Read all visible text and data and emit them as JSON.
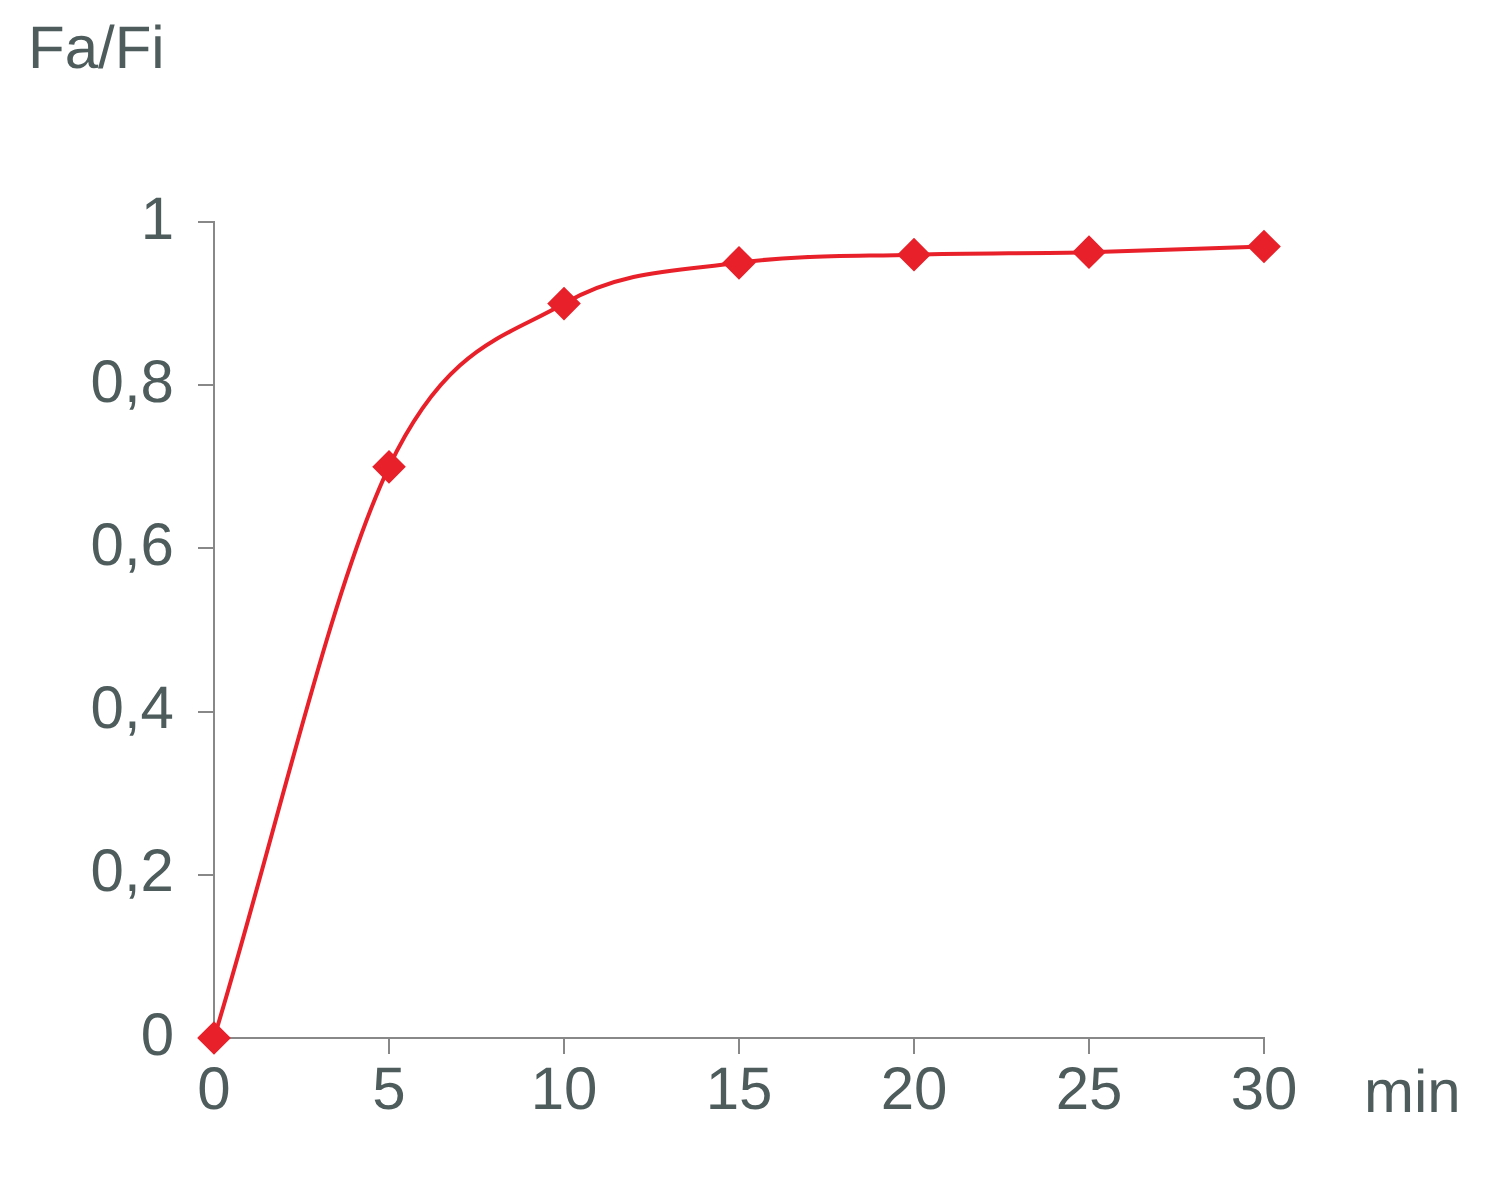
{
  "chart_data": {
    "type": "line",
    "xlabel": "min",
    "ylabel": "Fa/Fi",
    "x": [
      0,
      5,
      10,
      15,
      20,
      25,
      30
    ],
    "series": [
      {
        "color": "#e8202a",
        "values": [
          0,
          0.7,
          0.9,
          0.95,
          0.96,
          0.963,
          0.97
        ]
      }
    ],
    "xlim": [
      0,
      30
    ],
    "xticks": [
      0,
      5,
      10,
      15,
      20,
      25,
      30
    ],
    "ylim": [
      0,
      1
    ],
    "yticks": [
      {
        "value": 0,
        "label": "0"
      },
      {
        "value": 0.2,
        "label": "0,2"
      },
      {
        "value": 0.4,
        "label": "0,4"
      },
      {
        "value": 0.6,
        "label": "0,6"
      },
      {
        "value": 0.8,
        "label": "0,8"
      },
      {
        "value": 1,
        "label": "1"
      }
    ],
    "marker": "diamond",
    "line_style": "solid",
    "legend": false,
    "grid": false
  }
}
